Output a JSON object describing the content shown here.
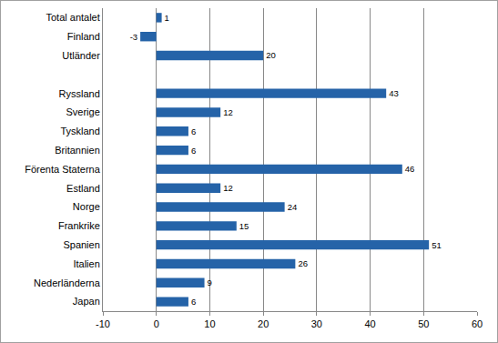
{
  "chart_data": {
    "type": "bar",
    "orientation": "horizontal",
    "categories": [
      "Total antalet",
      "Finland",
      "Utländer",
      null,
      "Ryssland",
      "Sverige",
      "Tyskland",
      "Britannien",
      "Förenta Staterna",
      "Estland",
      "Norge",
      "Frankrike",
      "Spanien",
      "Italien",
      "Nederländerna",
      "Japan"
    ],
    "values": [
      1,
      -3,
      20,
      null,
      43,
      12,
      6,
      6,
      46,
      12,
      24,
      15,
      51,
      26,
      9,
      6
    ],
    "color": "#2563a8",
    "xlim": [
      -10,
      60
    ],
    "xticks": [
      -10,
      0,
      10,
      20,
      30,
      40,
      50,
      60
    ],
    "grid": true,
    "data_labels": true
  }
}
